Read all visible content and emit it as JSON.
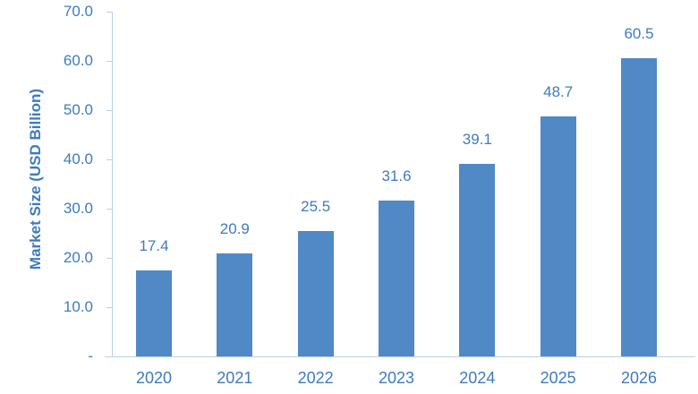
{
  "page": {
    "background": "#FFFFFF"
  },
  "chart_data": {
    "type": "bar",
    "title": "",
    "categories": [
      "2020",
      "2021",
      "2022",
      "2023",
      "2024",
      "2025",
      "2026"
    ],
    "values": [
      17.4,
      20.9,
      25.5,
      31.6,
      39.1,
      48.7,
      60.5
    ],
    "data_labels": [
      "17.4",
      "20.9",
      "25.5",
      "31.6",
      "39.1",
      "48.7",
      "60.5"
    ],
    "xlabel": "",
    "ylabel": "Market Size (USD Billion)",
    "ylim": [
      0,
      70
    ],
    "yticks": [
      {
        "label": "70.0",
        "value": 70
      },
      {
        "label": "60.0",
        "value": 60
      },
      {
        "label": "50.0",
        "value": 50
      },
      {
        "label": "40.0",
        "value": 40
      },
      {
        "label": "30.0",
        "value": 30
      },
      {
        "label": "20.0",
        "value": 20
      },
      {
        "label": "10.0",
        "value": 10
      },
      {
        "label": "-",
        "value": 0
      }
    ],
    "grid": false,
    "legend": "none",
    "colors": {
      "bar_fill": "#5089C5",
      "label_text": "#3E7BBE",
      "axis_line": "#BAD0E8"
    }
  }
}
